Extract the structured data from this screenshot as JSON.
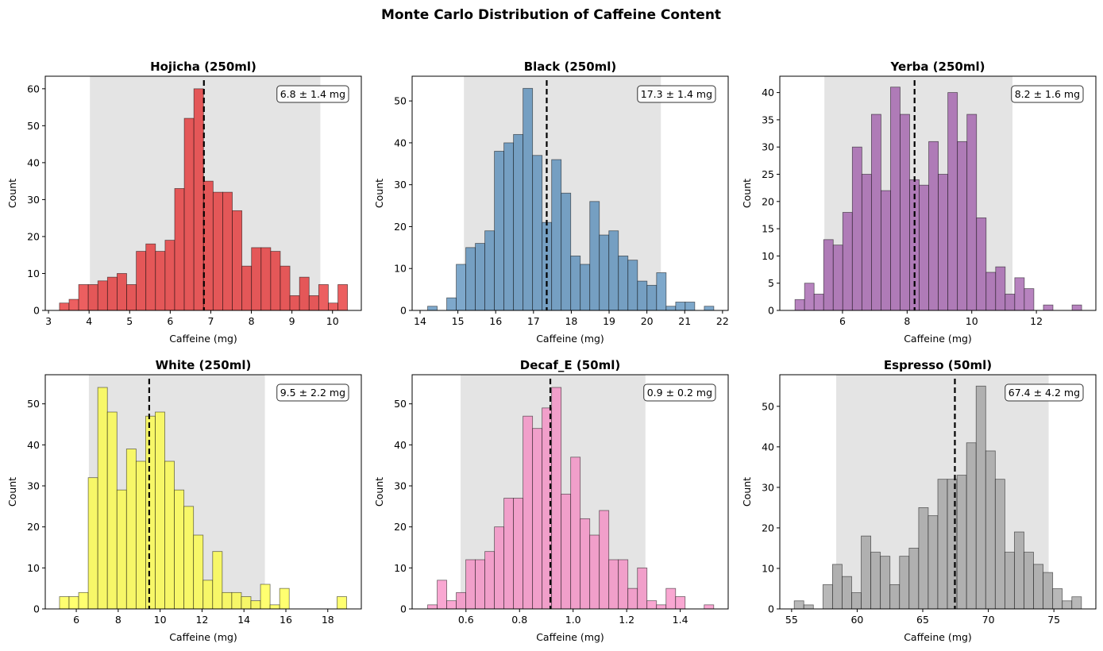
{
  "chart_data": {
    "title": "Monte Carlo Distribution of Caffeine Content",
    "layout": "2 rows x 3 columns",
    "panels": [
      {
        "type": "bar",
        "title": "Hojicha (250ml)",
        "xlabel": "Caffeine (mg)",
        "ylabel": "Count",
        "color": "#e41a1c",
        "annotation": "6.8 ± 1.4 mg",
        "mean": 6.83,
        "band": [
          4.02,
          9.7
        ],
        "bin_range": [
          3.27,
          10.37
        ],
        "counts": [
          2,
          3,
          7,
          7,
          8,
          9,
          10,
          7,
          16,
          18,
          16,
          19,
          33,
          52,
          60,
          35,
          32,
          32,
          27,
          12,
          17,
          17,
          16,
          12,
          4,
          9,
          4,
          7,
          2,
          7
        ],
        "xlim": [
          2.92,
          10.71
        ],
        "ylim": [
          0,
          63.4
        ],
        "xticks": [
          3,
          4,
          5,
          6,
          7,
          8,
          9,
          10
        ],
        "xtick_labels": [
          "3",
          "4",
          "5",
          "6",
          "7",
          "8",
          "9",
          "10"
        ],
        "yticks": [
          0,
          10,
          20,
          30,
          40,
          50,
          60
        ],
        "ytick_labels": [
          "0",
          "10",
          "20",
          "30",
          "40",
          "50",
          "60"
        ]
      },
      {
        "type": "bar",
        "title": "Black (250ml)",
        "xlabel": "Caffeine (mg)",
        "ylabel": "Count",
        "color": "#4682b4",
        "annotation": "17.3 ± 1.4 mg",
        "mean": 17.35,
        "band": [
          15.16,
          20.37
        ],
        "bin_range": [
          14.2,
          21.77
        ],
        "counts": [
          1,
          0,
          3,
          11,
          15,
          16,
          19,
          38,
          40,
          42,
          53,
          37,
          21,
          36,
          28,
          13,
          11,
          26,
          18,
          19,
          13,
          12,
          7,
          6,
          9,
          1,
          2,
          2,
          0,
          1
        ],
        "xlim": [
          13.79,
          22.15
        ],
        "ylim": [
          0,
          55.9
        ],
        "xticks": [
          14,
          15,
          16,
          17,
          18,
          19,
          20,
          21,
          22
        ],
        "xtick_labels": [
          "14",
          "15",
          "16",
          "17",
          "18",
          "19",
          "20",
          "21",
          "22"
        ],
        "yticks": [
          0,
          10,
          20,
          30,
          40,
          50
        ],
        "ytick_labels": [
          "0",
          "10",
          "20",
          "30",
          "40",
          "50"
        ]
      },
      {
        "type": "bar",
        "title": "Yerba (250ml)",
        "xlabel": "Caffeine (mg)",
        "ylabel": "Count",
        "color": "#984ea3",
        "annotation": "8.2 ± 1.6 mg",
        "mean": 8.23,
        "band": [
          5.44,
          11.26
        ],
        "bin_range": [
          4.53,
          13.4
        ],
        "counts": [
          2,
          5,
          3,
          13,
          12,
          18,
          30,
          25,
          36,
          22,
          41,
          36,
          24,
          23,
          31,
          25,
          40,
          31,
          36,
          17,
          7,
          8,
          3,
          6,
          4,
          0,
          1,
          0,
          0,
          1
        ],
        "xlim": [
          4.06,
          13.84
        ],
        "ylim": [
          0,
          43
        ],
        "xticks": [
          6,
          8,
          10,
          12
        ],
        "xtick_labels": [
          "6",
          "8",
          "10",
          "12"
        ],
        "yticks": [
          0,
          5,
          10,
          15,
          20,
          25,
          30,
          35,
          40
        ],
        "ytick_labels": [
          "0",
          "5",
          "10",
          "15",
          "20",
          "25",
          "30",
          "35",
          "40"
        ]
      },
      {
        "type": "bar",
        "title": "White (250ml)",
        "xlabel": "Caffeine (mg)",
        "ylabel": "Count",
        "color": "#ffff33",
        "annotation": "9.5 ± 2.2 mg",
        "mean": 9.48,
        "band": [
          6.6,
          15.0
        ],
        "bin_range": [
          5.2,
          18.9
        ],
        "counts": [
          3,
          3,
          4,
          32,
          54,
          48,
          29,
          39,
          36,
          47,
          48,
          36,
          29,
          25,
          18,
          7,
          14,
          4,
          4,
          3,
          2,
          6,
          1,
          5,
          0,
          0,
          0,
          0,
          0,
          3
        ],
        "xlim": [
          4.52,
          19.6
        ],
        "ylim": [
          0,
          57.1
        ],
        "xticks": [
          6,
          8,
          10,
          12,
          14,
          16,
          18
        ],
        "xtick_labels": [
          "6",
          "8",
          "10",
          "12",
          "14",
          "16",
          "18"
        ],
        "yticks": [
          0,
          10,
          20,
          30,
          40,
          50
        ],
        "ytick_labels": [
          "0",
          "10",
          "20",
          "30",
          "40",
          "50"
        ]
      },
      {
        "type": "bar",
        "title": "Decaf_E (50ml)",
        "xlabel": "Caffeine (mg)",
        "ylabel": "Count",
        "color": "#f781bf",
        "annotation": "0.9 ± 0.2 mg",
        "mean": 0.915,
        "band": [
          0.58,
          1.27
        ],
        "bin_range": [
          0.457,
          1.525
        ],
        "counts": [
          1,
          7,
          2,
          4,
          12,
          12,
          14,
          20,
          27,
          27,
          47,
          44,
          49,
          54,
          28,
          37,
          22,
          18,
          24,
          12,
          12,
          5,
          10,
          2,
          1,
          5,
          3,
          0,
          0,
          1
        ],
        "xlim": [
          0.399,
          1.579
        ],
        "ylim": [
          0,
          57.1
        ],
        "xticks": [
          0.6,
          0.8,
          1.0,
          1.2,
          1.4
        ],
        "xtick_labels": [
          "0.6",
          "0.8",
          "1.0",
          "1.2",
          "1.4"
        ],
        "yticks": [
          0,
          10,
          20,
          30,
          40,
          50
        ],
        "ytick_labels": [
          "0",
          "10",
          "20",
          "30",
          "40",
          "50"
        ]
      },
      {
        "type": "bar",
        "title": "Espresso (50ml)",
        "xlabel": "Caffeine (mg)",
        "ylabel": "Count",
        "color": "#999999",
        "annotation": "67.4 ± 4.2 mg",
        "mean": 67.45,
        "band": [
          58.4,
          74.6
        ],
        "bin_range": [
          55.2,
          77.1
        ],
        "counts": [
          2,
          1,
          0,
          6,
          11,
          8,
          4,
          18,
          14,
          13,
          6,
          13,
          15,
          25,
          23,
          32,
          32,
          33,
          41,
          55,
          39,
          32,
          14,
          19,
          14,
          11,
          9,
          5,
          2,
          3
        ],
        "xlim": [
          54.1,
          78.2
        ],
        "ylim": [
          0,
          57.8
        ],
        "xticks": [
          55,
          60,
          65,
          70,
          75
        ],
        "xtick_labels": [
          "55",
          "60",
          "65",
          "70",
          "75"
        ],
        "yticks": [
          0,
          10,
          20,
          30,
          40,
          50
        ],
        "ytick_labels": [
          "0",
          "10",
          "20",
          "30",
          "40",
          "50"
        ]
      }
    ]
  }
}
